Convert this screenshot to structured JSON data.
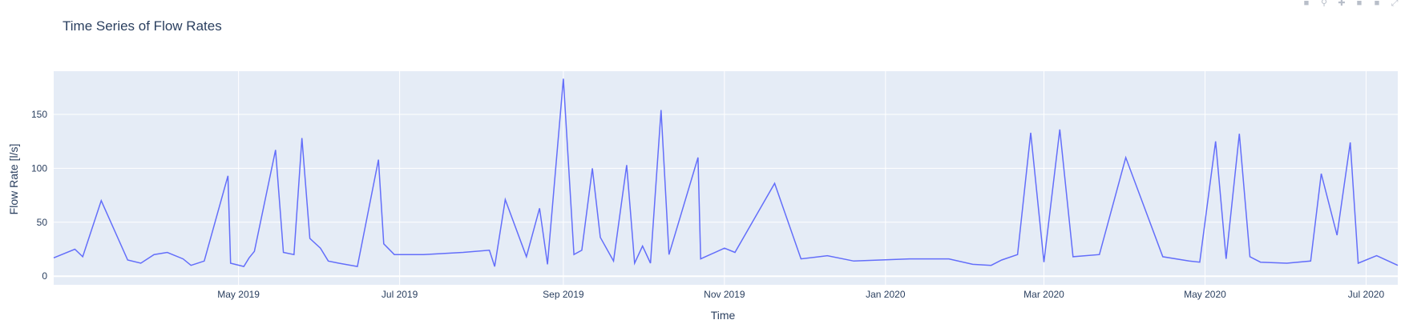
{
  "chart_data": {
    "type": "line",
    "title": "Time Series of Flow Rates",
    "xlabel": "Time",
    "ylabel": "Flow Rate [l/s]",
    "xlim": [
      "2019-02-20",
      "2020-07-13"
    ],
    "ylim": [
      -8,
      190
    ],
    "x_ticks": [
      {
        "date": "2019-05-01",
        "label": "May 2019"
      },
      {
        "date": "2019-07-01",
        "label": "Jul 2019"
      },
      {
        "date": "2019-09-01",
        "label": "Sep 2019"
      },
      {
        "date": "2019-11-01",
        "label": "Nov 2019"
      },
      {
        "date": "2020-01-01",
        "label": "Jan 2020"
      },
      {
        "date": "2020-03-01",
        "label": "Mar 2020"
      },
      {
        "date": "2020-05-01",
        "label": "May 2020"
      },
      {
        "date": "2020-07-01",
        "label": "Jul 2020"
      }
    ],
    "y_ticks": [
      0,
      50,
      100,
      150
    ],
    "grid": true,
    "line_color": "#636efa",
    "plot_bg": "#e5ecf6",
    "series": [
      {
        "x": [
          "2019-02-20",
          "2019-02-28",
          "2019-03-03",
          "2019-03-10",
          "2019-03-20",
          "2019-03-25",
          "2019-03-30",
          "2019-04-04",
          "2019-04-10",
          "2019-04-13",
          "2019-04-18",
          "2019-04-27",
          "2019-04-28",
          "2019-05-03",
          "2019-05-05",
          "2019-05-07",
          "2019-05-15",
          "2019-05-18",
          "2019-05-22",
          "2019-05-25",
          "2019-05-28",
          "2019-06-01",
          "2019-06-04",
          "2019-06-08",
          "2019-06-15",
          "2019-06-23",
          "2019-06-25",
          "2019-06-29",
          "2019-07-10",
          "2019-07-25",
          "2019-08-04",
          "2019-08-06",
          "2019-08-10",
          "2019-08-18",
          "2019-08-23",
          "2019-08-26",
          "2019-09-01",
          "2019-09-05",
          "2019-09-08",
          "2019-09-12",
          "2019-09-15",
          "2019-09-20",
          "2019-09-25",
          "2019-09-28",
          "2019-10-01",
          "2019-10-04",
          "2019-10-08",
          "2019-10-11",
          "2019-10-22",
          "2019-10-23",
          "2019-11-01",
          "2019-11-05",
          "2019-11-20",
          "2019-11-30",
          "2019-12-10",
          "2019-12-20",
          "2020-01-10",
          "2020-01-25",
          "2020-02-03",
          "2020-02-10",
          "2020-02-14",
          "2020-02-20",
          "2020-02-25",
          "2020-03-01",
          "2020-03-07",
          "2020-03-12",
          "2020-03-22",
          "2020-04-01",
          "2020-04-15",
          "2020-04-25",
          "2020-04-29",
          "2020-05-05",
          "2020-05-09",
          "2020-05-14",
          "2020-05-18",
          "2020-05-22",
          "2020-06-01",
          "2020-06-10",
          "2020-06-14",
          "2020-06-20",
          "2020-06-25",
          "2020-06-28",
          "2020-07-05",
          "2020-07-13"
        ],
        "y": [
          17,
          25,
          18,
          70,
          15,
          12,
          20,
          22,
          16,
          10,
          14,
          93,
          12,
          9,
          17,
          23,
          117,
          22,
          20,
          128,
          35,
          26,
          14,
          12,
          9,
          108,
          30,
          20,
          20,
          22,
          24,
          9,
          71,
          18,
          63,
          11,
          183,
          20,
          24,
          100,
          36,
          14,
          103,
          12,
          28,
          12,
          154,
          20,
          110,
          16,
          26,
          22,
          86,
          16,
          19,
          14,
          16,
          16,
          11,
          10,
          15,
          20,
          133,
          13,
          136,
          18,
          20,
          110,
          18,
          14,
          13,
          125,
          16,
          132,
          18,
          13,
          12,
          14,
          95,
          38,
          124,
          12,
          19,
          10
        ]
      }
    ]
  }
}
